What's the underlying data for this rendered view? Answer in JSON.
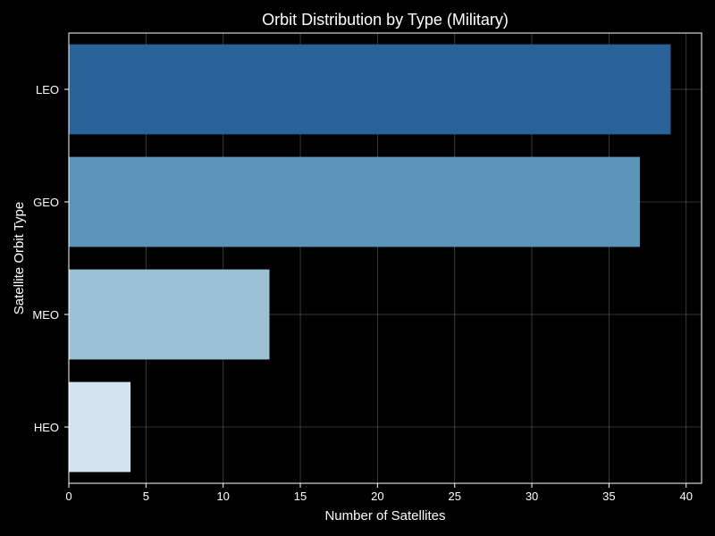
{
  "chart_data": {
    "type": "bar",
    "orientation": "horizontal",
    "title": "Orbit Distribution by Type (Military)",
    "xlabel": "Number of Satellites",
    "ylabel": "Satellite Orbit Type",
    "categories": [
      "LEO",
      "GEO",
      "MEO",
      "HEO"
    ],
    "values": [
      39,
      37,
      13,
      4
    ],
    "colors": [
      "#2a6399",
      "#5b95b9",
      "#9bc1d7",
      "#d4e3f0"
    ],
    "xlim": [
      0,
      41
    ],
    "xticks": [
      0,
      5,
      10,
      15,
      20,
      25,
      30,
      35,
      40
    ],
    "grid": true,
    "background": "#000000",
    "text_color": "#ffffff"
  }
}
